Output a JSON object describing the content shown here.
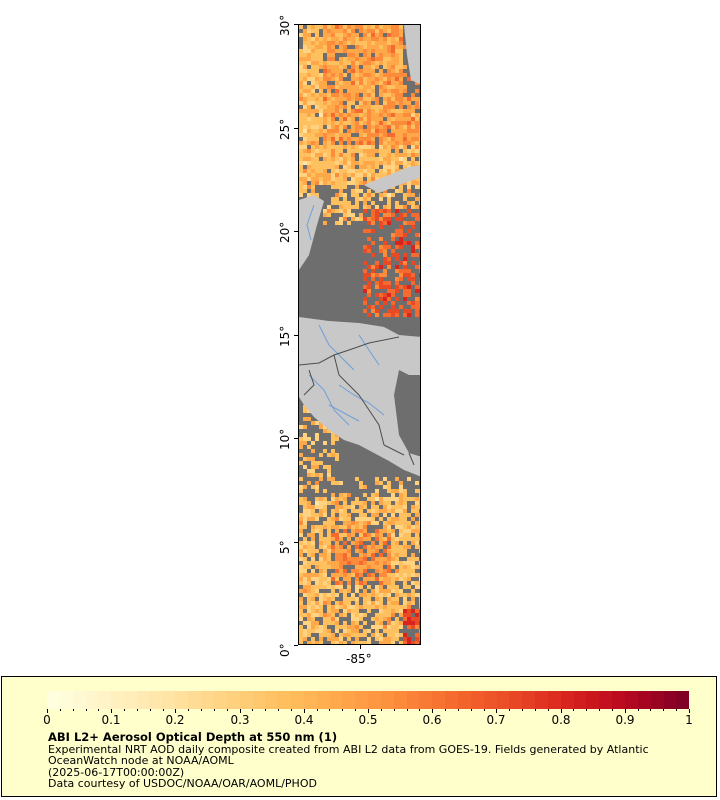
{
  "map": {
    "y_axis_labels": [
      "30°",
      "25°",
      "20°",
      "15°",
      "10°",
      "5°",
      "0°"
    ],
    "x_axis_labels": [
      "-85°"
    ],
    "colors": {
      "ocean_no_data": "#6e6e6e",
      "land": "#c8c8c8",
      "rivers": "#6f9fd8",
      "borders": "#4d4d4d"
    }
  },
  "legend": {
    "title": "ABI L2+ Aerosol Optical Depth at 550 nm (1)",
    "line1": "Experimental NRT AOD daily composite created from ABI L2 data from GOES-19. Fields generated by Atlantic OceanWatch node at NOAA/AOML",
    "line2": "(2025-06-17T00:00:00Z)",
    "line3": "Data courtesy of USDOC/NOAA/OAR/AOML/PHOD",
    "tick_labels": [
      "0",
      "0.1",
      "0.2",
      "0.3",
      "0.4",
      "0.5",
      "0.6",
      "0.7",
      "0.8",
      "0.9",
      "1"
    ],
    "colorbar_colors": [
      "#ffffe0",
      "#fff2c4",
      "#ffe4a6",
      "#ffd382",
      "#ffc060",
      "#ffa84a",
      "#fc8c3c",
      "#f56a2e",
      "#e94a26",
      "#d8231e",
      "#b8081f",
      "#800026"
    ]
  }
}
